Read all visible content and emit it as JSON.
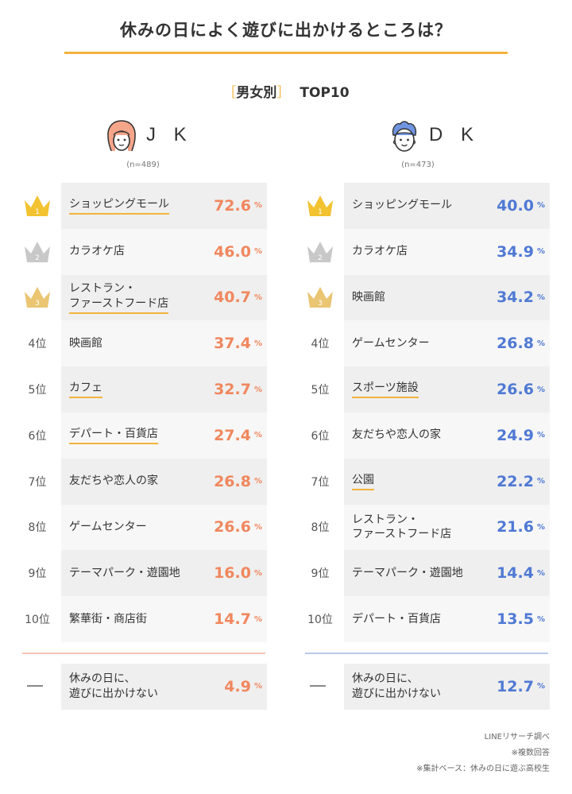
{
  "title": "休みの日によく遊びに出かけるところは？",
  "subtitle": {
    "bracket_open": "［",
    "label": "男女別",
    "bracket_close": "］",
    "top": "TOP10"
  },
  "colors": {
    "accent": "#f2b33d",
    "jk": "#f0875e",
    "dk": "#4f79d4",
    "gold": "#f2c230",
    "silver": "#c8c8c8",
    "bronze": "#eac572"
  },
  "jk": {
    "label": "J K",
    "n": "(n=489)",
    "rows": [
      {
        "rank": "",
        "name": "ショッピングモール",
        "value": "72.6",
        "unit": "%",
        "underline": true,
        "crown": "gold"
      },
      {
        "rank": "",
        "name": "カラオケ店",
        "value": "46.0",
        "unit": "%",
        "underline": false,
        "crown": "silver"
      },
      {
        "rank": "",
        "name": "レストラン・\nファーストフード店",
        "value": "40.7",
        "unit": "%",
        "underline": true,
        "crown": "bronze"
      },
      {
        "rank": "4位",
        "name": "映画館",
        "value": "37.4",
        "unit": "%",
        "underline": false
      },
      {
        "rank": "5位",
        "name": "カフェ",
        "value": "32.7",
        "unit": "%",
        "underline": true
      },
      {
        "rank": "6位",
        "name": "デパート・百貨店",
        "value": "27.4",
        "unit": "%",
        "underline": true
      },
      {
        "rank": "7位",
        "name": "友だちや恋人の家",
        "value": "26.8",
        "unit": "%",
        "underline": false
      },
      {
        "rank": "8位",
        "name": "ゲームセンター",
        "value": "26.6",
        "unit": "%",
        "underline": false
      },
      {
        "rank": "9位",
        "name": "テーマパーク・遊園地",
        "value": "16.0",
        "unit": "%",
        "underline": false
      },
      {
        "rank": "10位",
        "name": "繁華街・商店街",
        "value": "14.7",
        "unit": "%",
        "underline": false
      }
    ],
    "extra": {
      "name": "休みの日に、\n遊びに出かけない",
      "value": "4.9",
      "unit": "%"
    }
  },
  "dk": {
    "label": "D K",
    "n": "(n=473)",
    "rows": [
      {
        "rank": "",
        "name": "ショッピングモール",
        "value": "40.0",
        "unit": "%",
        "underline": false,
        "crown": "gold"
      },
      {
        "rank": "",
        "name": "カラオケ店",
        "value": "34.9",
        "unit": "%",
        "underline": false,
        "crown": "silver"
      },
      {
        "rank": "",
        "name": "映画館",
        "value": "34.2",
        "unit": "%",
        "underline": false,
        "crown": "bronze"
      },
      {
        "rank": "4位",
        "name": "ゲームセンター",
        "value": "26.8",
        "unit": "%",
        "underline": false
      },
      {
        "rank": "5位",
        "name": "スポーツ施設",
        "value": "26.6",
        "unit": "%",
        "underline": true
      },
      {
        "rank": "6位",
        "name": "友だちや恋人の家",
        "value": "24.9",
        "unit": "%",
        "underline": false
      },
      {
        "rank": "7位",
        "name": "公園",
        "value": "22.2",
        "unit": "%",
        "underline": true
      },
      {
        "rank": "8位",
        "name": "レストラン・\nファーストフード店",
        "value": "21.6",
        "unit": "%",
        "underline": false
      },
      {
        "rank": "9位",
        "name": "テーマパーク・遊園地",
        "value": "14.4",
        "unit": "%",
        "underline": false
      },
      {
        "rank": "10位",
        "name": "デパート・百貨店",
        "value": "13.5",
        "unit": "%",
        "underline": false
      }
    ],
    "extra": {
      "name": "休みの日に、\n遊びに出かけない",
      "value": "12.7",
      "unit": "%"
    }
  },
  "notes": [
    "LINEリサーチ調べ",
    "※複数回答",
    "※集計ベース：休みの日に遊ぶ高校生"
  ],
  "chart_data": {
    "type": "table",
    "title": "休みの日によく遊びに出かけるところは？",
    "subtitle": "［男女別］TOP10",
    "series": [
      {
        "name": "J K",
        "n": "(n=489)",
        "categories": [
          "ショッピングモール",
          "カラオケ店",
          "レストラン・ファーストフード店",
          "映画館",
          "カフェ",
          "デパート・百貨店",
          "友だちや恋人の家",
          "ゲームセンター",
          "テーマパーク・遊園地",
          "繁華街・商店街",
          "休みの日に、遊びに出かけない"
        ],
        "values": [
          72.6,
          46.0,
          40.7,
          37.4,
          32.7,
          27.4,
          26.8,
          26.6,
          16.0,
          14.7,
          4.9
        ]
      },
      {
        "name": "D K",
        "n": "(n=473)",
        "categories": [
          "ショッピングモール",
          "カラオケ店",
          "映画館",
          "ゲームセンター",
          "スポーツ施設",
          "友だちや恋人の家",
          "公園",
          "レストラン・ファーストフード店",
          "テーマパーク・遊園地",
          "デパート・百貨店",
          "休みの日に、遊びに出かけない"
        ],
        "values": [
          40.0,
          34.9,
          34.2,
          26.8,
          26.6,
          24.9,
          22.2,
          21.6,
          14.4,
          13.5,
          12.7
        ]
      }
    ]
  }
}
